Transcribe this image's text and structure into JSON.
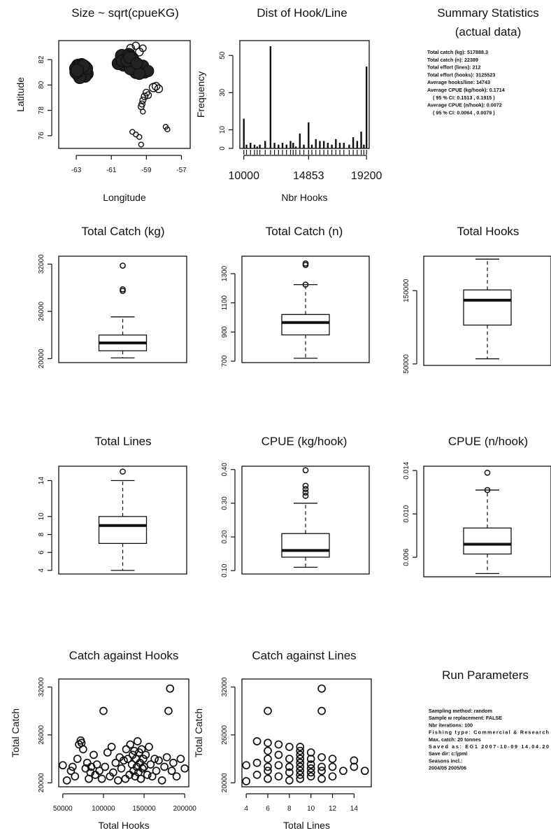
{
  "summary": {
    "title_line1": "Summary Statistics",
    "title_line2": "(actual data)",
    "lines": [
      "Total catch (kg):  517888.3",
      "Total catch (n):  22389",
      "Total effort (lines):  212",
      "Total effort (hooks):  3125523",
      "Average hooks/line:  14743",
      "Average CPUE (kg/hook):  0.1714",
      "( 95 % CI:  0.1513 , 0.1915 )",
      "Average CPUE (n/hook):  0.0072",
      "( 95 % CI:  0.0064 , 0.0079 )"
    ]
  },
  "run_params": {
    "title": "Run Parameters",
    "lines": [
      "Sampling method:  random",
      "Sample w replacement:  FALSE",
      "Nbr iterations:  100",
      "Fishing type:  Commercial & Research",
      "Max. catch:  20  tonnes",
      "Saved as:  EG1  2007-10-09 14.04.20",
      "Save dir:  c:\\jpm\\",
      "Seasons incl.:",
      "2004/05 2005/06"
    ]
  },
  "chart_data": [
    {
      "id": "map",
      "type": "scatter",
      "title": "Size ~ sqrt(cpueKG)",
      "xlabel": "Longitude",
      "ylabel": "Latitude",
      "xlim": [
        -64,
        -56.5
      ],
      "ylim": [
        75,
        83.5
      ],
      "xticks": [
        -63,
        -61,
        -59,
        -57
      ],
      "yticks": [
        76,
        78,
        80,
        82
      ],
      "points": [
        [
          -62.9,
          81.5,
          2.0
        ],
        [
          -62.8,
          81.2,
          2.0
        ],
        [
          -62.7,
          81.0,
          2.0
        ],
        [
          -62.6,
          80.8,
          2.0
        ],
        [
          -62.9,
          80.9,
          2.0
        ],
        [
          -63.0,
          81.3,
          2.0
        ],
        [
          -62.5,
          81.4,
          1.9
        ],
        [
          -62.6,
          81.1,
          2.0
        ],
        [
          -62.4,
          80.9,
          1.9
        ],
        [
          -62.5,
          80.7,
          1.8
        ],
        [
          -62.8,
          80.6,
          1.8
        ],
        [
          -63.0,
          81.0,
          1.9
        ],
        [
          -62.7,
          81.6,
          1.8
        ],
        [
          -62.4,
          81.3,
          1.7
        ],
        [
          -62.8,
          81.4,
          2.0
        ],
        [
          -62.6,
          81.5,
          1.9
        ],
        [
          -62.95,
          81.15,
          1.9
        ],
        [
          -60.4,
          82.3,
          1.9
        ],
        [
          -60.2,
          82.0,
          1.9
        ],
        [
          -60.0,
          82.4,
          1.8
        ],
        [
          -59.8,
          82.1,
          1.8
        ],
        [
          -60.3,
          81.6,
          1.9
        ],
        [
          -60.0,
          81.7,
          1.9
        ],
        [
          -59.7,
          81.5,
          1.9
        ],
        [
          -59.5,
          81.3,
          1.8
        ],
        [
          -59.3,
          81.1,
          1.8
        ],
        [
          -59.1,
          81.0,
          1.7
        ],
        [
          -59.6,
          81.0,
          1.8
        ],
        [
          -59.9,
          81.3,
          1.9
        ],
        [
          -60.6,
          81.7,
          1.8
        ],
        [
          -60.4,
          81.9,
          1.7
        ],
        [
          -59.2,
          81.5,
          1.7
        ],
        [
          -58.9,
          81.1,
          1.6
        ],
        [
          -59.4,
          80.9,
          1.7
        ],
        [
          -60.1,
          81.9,
          1.8
        ],
        [
          -59.95,
          82.2,
          1.8
        ],
        [
          -59.55,
          81.7,
          1.7
        ],
        [
          -59.9,
          82.9,
          1.0
        ],
        [
          -59.6,
          83.1,
          0.9
        ],
        [
          -59.4,
          82.6,
          1.0
        ],
        [
          -59.2,
          82.9,
          0.8
        ],
        [
          -58.6,
          79.8,
          1.1
        ],
        [
          -58.3,
          79.7,
          1.0
        ],
        [
          -58.45,
          79.9,
          1.0
        ],
        [
          -59.0,
          79.4,
          0.8
        ],
        [
          -59.1,
          79.1,
          0.8
        ],
        [
          -58.9,
          79.2,
          0.8
        ],
        [
          -59.2,
          78.8,
          0.7
        ],
        [
          -59.25,
          78.5,
          0.7
        ],
        [
          -59.3,
          78.3,
          0.7
        ],
        [
          -59.2,
          77.9,
          0.5
        ],
        [
          -59.8,
          76.3,
          0.5
        ],
        [
          -59.6,
          76.1,
          0.5
        ],
        [
          -59.4,
          75.9,
          0.5
        ],
        [
          -59.3,
          75.3,
          0.5
        ],
        [
          -57.9,
          76.7,
          0.5
        ],
        [
          -57.8,
          76.5,
          0.5
        ]
      ]
    },
    {
      "id": "hist",
      "type": "bar",
      "title": "Dist of Hook/Line",
      "xlabel": "Nbr Hooks",
      "ylabel": "Frequency",
      "xlim": [
        9700,
        19400
      ],
      "ylim": [
        0,
        58
      ],
      "xticks": [
        10000,
        14853,
        19200
      ],
      "yticks": [
        0,
        10,
        30,
        50
      ],
      "x": [
        10000,
        10200,
        10500,
        10800,
        11000,
        11200,
        11600,
        12000,
        12300,
        12600,
        12900,
        13200,
        13500,
        13700,
        13900,
        14200,
        14500,
        14853,
        15100,
        15400,
        15700,
        16000,
        16300,
        16600,
        16900,
        17200,
        17500,
        17900,
        18200,
        18500,
        18800,
        19000,
        19200
      ],
      "values": [
        16,
        2,
        3,
        2,
        1,
        2,
        4,
        55,
        3,
        2,
        3,
        2,
        4,
        3,
        1,
        8,
        2,
        14,
        2,
        5,
        4,
        4,
        3,
        2,
        5,
        3,
        3,
        2,
        6,
        4,
        9,
        2,
        44
      ]
    },
    {
      "id": "box_catch_kg",
      "type": "box",
      "title": "Total Catch (kg)",
      "ylim": [
        19500,
        33000
      ],
      "yticks": [
        20000,
        26000,
        32000
      ],
      "min": 20100,
      "q1": 21000,
      "median": 22000,
      "q3": 23000,
      "max": 25300,
      "outliers": [
        28600,
        28800,
        31800
      ]
    },
    {
      "id": "box_catch_n",
      "type": "box",
      "title": "Total Catch (n)",
      "ylim": [
        690,
        1420
      ],
      "yticks": [
        700,
        900,
        1100,
        1300
      ],
      "min": 720,
      "q1": 880,
      "median": 965,
      "q3": 1020,
      "max": 1225,
      "outliers": [
        1225,
        1360,
        1370
      ]
    },
    {
      "id": "box_hooks",
      "type": "box",
      "title": "Total Hooks",
      "ylim": [
        48000,
        197000
      ],
      "yticks": [
        50000,
        150000
      ],
      "min": 57000,
      "q1": 103000,
      "median": 137000,
      "q3": 151000,
      "max": 193000,
      "outliers": []
    },
    {
      "id": "box_lines",
      "type": "box",
      "title": "Total Lines",
      "ylim": [
        3.6,
        15.6
      ],
      "yticks": [
        4,
        6,
        8,
        10,
        14
      ],
      "min": 4,
      "q1": 7,
      "median": 9,
      "q3": 10,
      "max": 14,
      "outliers": [
        15
      ]
    },
    {
      "id": "box_cpue_kg",
      "type": "box",
      "title": "CPUE (kg/hook)",
      "ylim": [
        0.09,
        0.41
      ],
      "yticks": [
        0.1,
        0.2,
        0.3,
        0.4
      ],
      "ytick_labels": [
        "0.10",
        "0.20",
        "0.30",
        "0.40"
      ],
      "min": 0.11,
      "q1": 0.14,
      "median": 0.16,
      "q3": 0.21,
      "max": 0.3,
      "outliers": [
        0.322,
        0.332,
        0.342,
        0.352,
        0.398
      ]
    },
    {
      "id": "box_cpue_n",
      "type": "box",
      "title": "CPUE (n/hook)",
      "ylim": [
        0.0042,
        0.0144
      ],
      "yticks": [
        0.006,
        0.01,
        0.014
      ],
      "ytick_labels": [
        "0.006",
        "0.010",
        "0.014"
      ],
      "min": 0.0045,
      "q1": 0.0063,
      "median": 0.0072,
      "q3": 0.0087,
      "max": 0.0122,
      "outliers": [
        0.0122,
        0.0138
      ]
    },
    {
      "id": "scatter_hooks",
      "type": "scatter",
      "title": "Catch against Hooks",
      "xlabel": "Total Hooks",
      "ylabel": "Total Catch",
      "xlim": [
        45000,
        205000
      ],
      "ylim": [
        19500,
        33000
      ],
      "xticks": [
        50000,
        100000,
        150000,
        200000
      ],
      "yticks": [
        20000,
        26000,
        32000
      ],
      "points": [
        [
          50000,
          22200
        ],
        [
          55000,
          20300
        ],
        [
          60000,
          21500
        ],
        [
          62000,
          22000
        ],
        [
          65000,
          20800
        ],
        [
          68000,
          23000
        ],
        [
          70000,
          24800
        ],
        [
          72000,
          25300
        ],
        [
          73000,
          25000
        ],
        [
          75000,
          24200
        ],
        [
          78000,
          21800
        ],
        [
          80000,
          22500
        ],
        [
          82000,
          20500
        ],
        [
          84000,
          21300
        ],
        [
          85000,
          22000
        ],
        [
          88000,
          23500
        ],
        [
          90000,
          21000
        ],
        [
          92000,
          22300
        ],
        [
          95000,
          21500
        ],
        [
          98000,
          20500
        ],
        [
          100000,
          29000
        ],
        [
          102000,
          22000
        ],
        [
          105000,
          23800
        ],
        [
          108000,
          20800
        ],
        [
          110000,
          24500
        ],
        [
          112000,
          21300
        ],
        [
          115000,
          22500
        ],
        [
          118000,
          20300
        ],
        [
          120000,
          23200
        ],
        [
          122000,
          21800
        ],
        [
          125000,
          22800
        ],
        [
          127000,
          20500
        ],
        [
          128000,
          24200
        ],
        [
          130000,
          23000
        ],
        [
          132000,
          21000
        ],
        [
          133000,
          24800
        ],
        [
          135000,
          22300
        ],
        [
          136000,
          23500
        ],
        [
          137000,
          21500
        ],
        [
          138000,
          24000
        ],
        [
          139000,
          20800
        ],
        [
          140000,
          23000
        ],
        [
          141000,
          22000
        ],
        [
          142000,
          25200
        ],
        [
          143000,
          21300
        ],
        [
          144000,
          23800
        ],
        [
          145000,
          22500
        ],
        [
          146000,
          20500
        ],
        [
          147000,
          24200
        ],
        [
          148000,
          21800
        ],
        [
          149000,
          23000
        ],
        [
          150000,
          22000
        ],
        [
          152000,
          23500
        ],
        [
          154000,
          21000
        ],
        [
          156000,
          24500
        ],
        [
          158000,
          22300
        ],
        [
          160000,
          20800
        ],
        [
          163000,
          23000
        ],
        [
          165000,
          21500
        ],
        [
          168000,
          22800
        ],
        [
          172000,
          20300
        ],
        [
          175000,
          22000
        ],
        [
          178000,
          23200
        ],
        [
          180000,
          29000
        ],
        [
          182000,
          31800
        ],
        [
          184000,
          21500
        ],
        [
          186000,
          22500
        ],
        [
          190000,
          20800
        ],
        [
          195000,
          23000
        ],
        [
          200000,
          21800
        ]
      ]
    },
    {
      "id": "scatter_lines",
      "type": "scatter",
      "title": "Catch against Lines",
      "xlabel": "Total Lines",
      "ylabel": "Total Catch",
      "xlim": [
        3.6,
        15.6
      ],
      "ylim": [
        19500,
        33000
      ],
      "xticks": [
        4,
        6,
        8,
        10,
        12,
        14
      ],
      "yticks": [
        20000,
        26000,
        32000
      ],
      "points": [
        [
          4,
          20200
        ],
        [
          4,
          22200
        ],
        [
          5,
          21000
        ],
        [
          5,
          22500
        ],
        [
          5,
          25200
        ],
        [
          6,
          20500
        ],
        [
          6,
          21500
        ],
        [
          6,
          22000
        ],
        [
          6,
          23000
        ],
        [
          6,
          24000
        ],
        [
          6,
          25000
        ],
        [
          6,
          29000
        ],
        [
          7,
          20800
        ],
        [
          7,
          22200
        ],
        [
          7,
          23500
        ],
        [
          7,
          24800
        ],
        [
          8,
          20300
        ],
        [
          8,
          21300
        ],
        [
          8,
          22000
        ],
        [
          8,
          23000
        ],
        [
          8,
          24500
        ],
        [
          9,
          20500
        ],
        [
          9,
          21000
        ],
        [
          9,
          21500
        ],
        [
          9,
          22000
        ],
        [
          9,
          22500
        ],
        [
          9,
          23000
        ],
        [
          9,
          23500
        ],
        [
          9,
          24000
        ],
        [
          9,
          24500
        ],
        [
          10,
          20800
        ],
        [
          10,
          21300
        ],
        [
          10,
          21800
        ],
        [
          10,
          22300
        ],
        [
          10,
          23000
        ],
        [
          10,
          23800
        ],
        [
          11,
          20500
        ],
        [
          11,
          21500
        ],
        [
          11,
          22000
        ],
        [
          11,
          23200
        ],
        [
          11,
          29000
        ],
        [
          11,
          31800
        ],
        [
          12,
          20800
        ],
        [
          12,
          22000
        ],
        [
          12,
          23000
        ],
        [
          13,
          21500
        ],
        [
          14,
          22000
        ],
        [
          14,
          22800
        ],
        [
          15,
          21500
        ]
      ]
    }
  ]
}
